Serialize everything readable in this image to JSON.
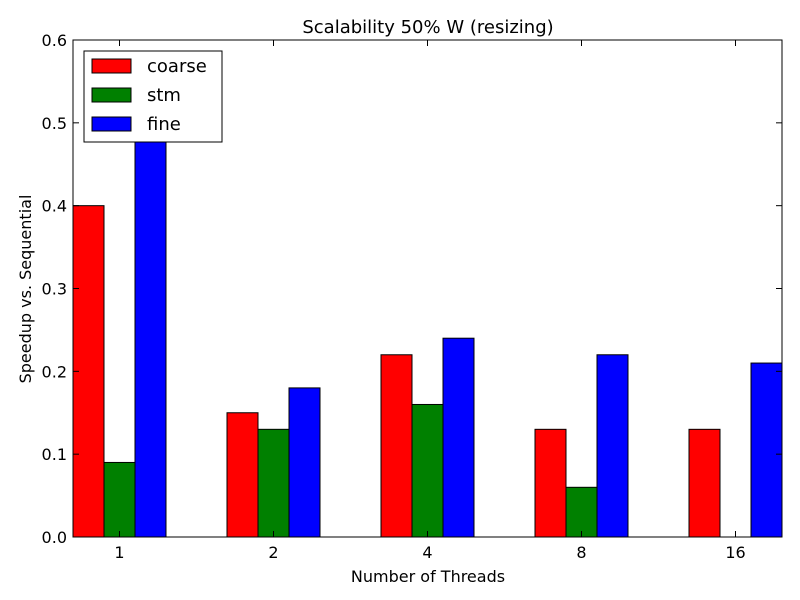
{
  "chart_data": {
    "type": "bar",
    "title": "Scalability 50% W (resizing)",
    "xlabel": "Number of Threads",
    "ylabel": "Speedup vs. Sequential",
    "categories": [
      "1",
      "2",
      "4",
      "8",
      "16"
    ],
    "ylim": [
      0,
      0.6
    ],
    "yticks": [
      "0.0",
      "0.1",
      "0.2",
      "0.3",
      "0.4",
      "0.5",
      "0.6"
    ],
    "legend_position": "top-left",
    "series": [
      {
        "name": "coarse",
        "color": "#ff0000",
        "values": [
          0.4,
          0.15,
          0.22,
          0.13,
          0.13
        ]
      },
      {
        "name": "stm",
        "color": "#008000",
        "values": [
          0.09,
          0.13,
          0.16,
          0.06,
          0.0
        ]
      },
      {
        "name": "fine",
        "color": "#0000ff",
        "values": [
          0.48,
          0.18,
          0.24,
          0.22,
          0.21
        ]
      }
    ]
  }
}
